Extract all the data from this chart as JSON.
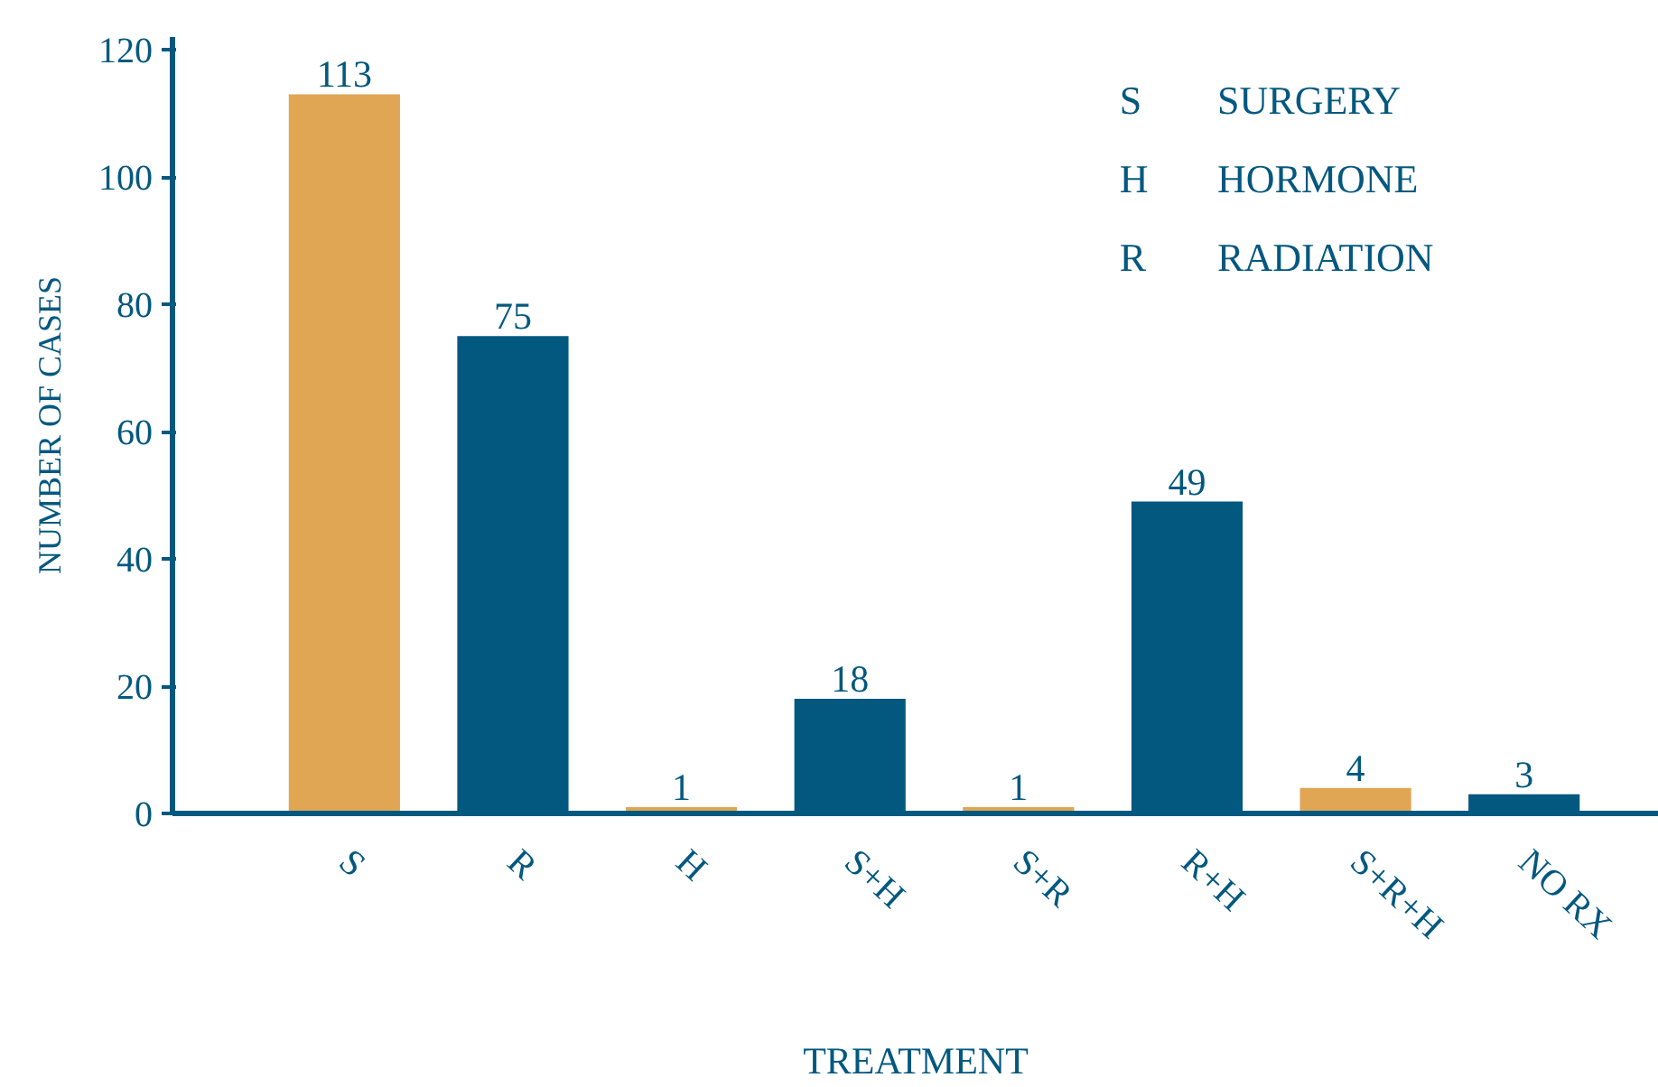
{
  "chart_data": {
    "type": "bar",
    "xlabel": "TREATMENT",
    "ylabel": "NUMBER OF CASES",
    "categories": [
      "S",
      "R",
      "H",
      "S+H",
      "S+R",
      "R+H",
      "S+R+H",
      "NO RX"
    ],
    "values": [
      113,
      75,
      1,
      18,
      1,
      49,
      4,
      3
    ],
    "colors": [
      "#e0a654",
      "#03587f",
      "#e0a654",
      "#03587f",
      "#e0a654",
      "#03587f",
      "#e0a654",
      "#03587f"
    ],
    "ylim": [
      0,
      122
    ],
    "yticks": [
      0,
      20,
      40,
      60,
      80,
      100,
      120
    ],
    "grid": false,
    "data_labels": true,
    "annotations": [
      "S",
      "SURGERY",
      "H",
      "HORMONE",
      "R",
      "RADIATION"
    ]
  }
}
